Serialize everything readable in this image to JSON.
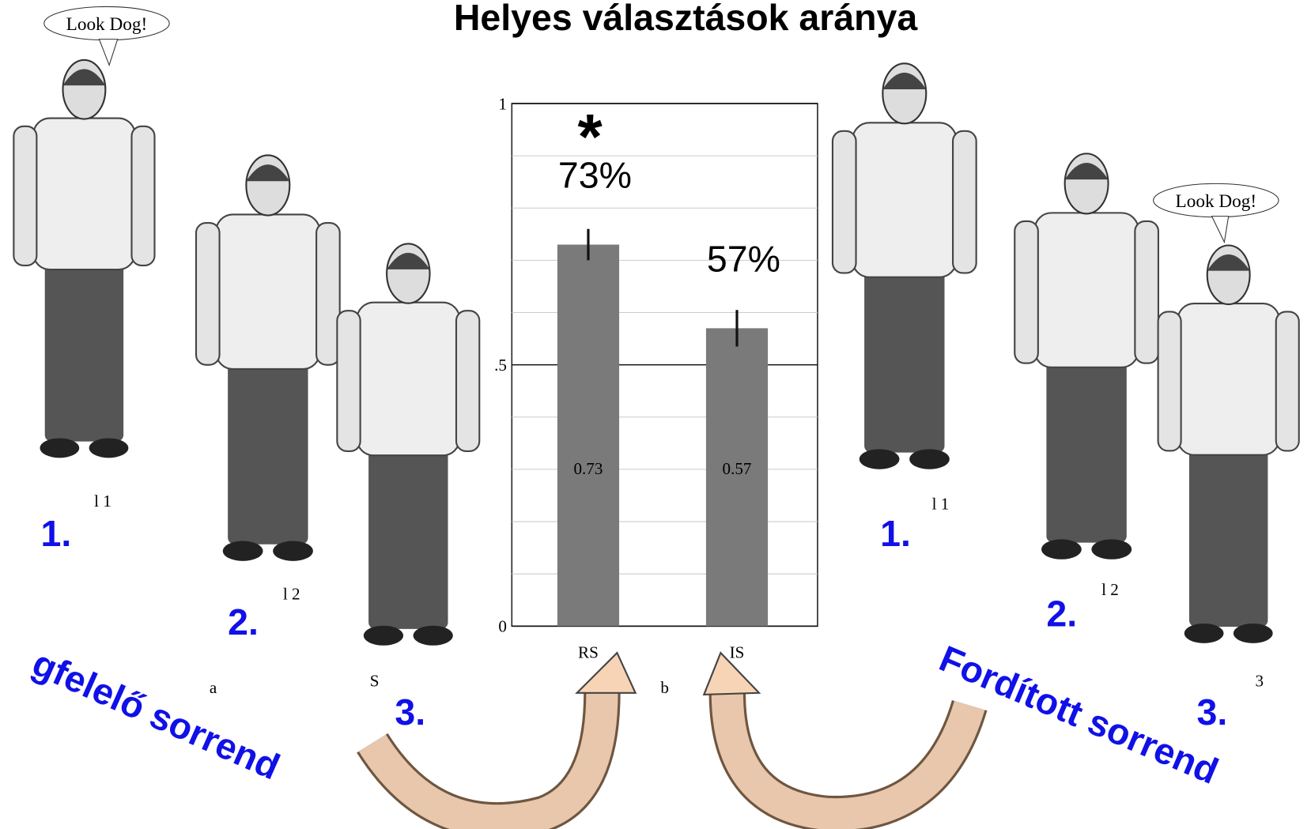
{
  "chart_data": {
    "type": "bar",
    "title": "Helyes választások aránya",
    "categories": [
      "RS",
      "IS"
    ],
    "values": [
      0.73,
      0.57
    ],
    "errors": [
      0.03,
      0.035
    ],
    "percent_labels": [
      "73%",
      "57%"
    ],
    "significance": "*",
    "caption": "b",
    "color": "#7a7a7a",
    "ylim": [
      0,
      1
    ],
    "yticks": [
      0,
      {
        "value": 0.5,
        "label": ".5"
      },
      1
    ],
    "grid_values": [
      0.1,
      0.2,
      0.3,
      0.4,
      0.6,
      0.7,
      0.8,
      0.9
    ]
  },
  "figures": {
    "bubbles": [
      "Look Dog!",
      "Look Dog!"
    ],
    "numbers": [
      "1.",
      "2.",
      "3.",
      "1.",
      "2.",
      "3."
    ],
    "orders": [
      "gfelelő sorrend",
      "Fordított sorrend"
    ],
    "panel_labels": [
      "l 1",
      "l 2",
      "a",
      "S",
      "l 1",
      "l 2",
      "3"
    ]
  }
}
